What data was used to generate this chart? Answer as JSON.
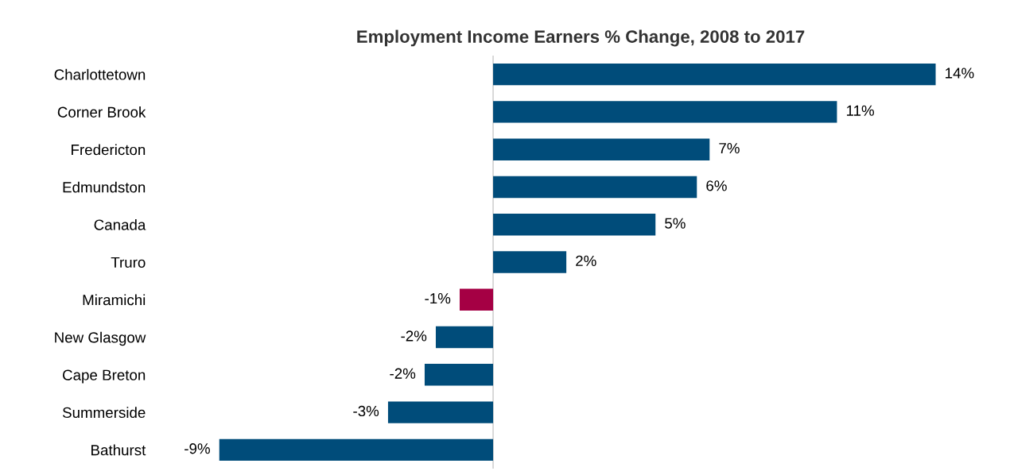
{
  "chart_data": {
    "type": "bar",
    "orientation": "horizontal",
    "title": "Employment Income Earners % Change, 2008 to 2017",
    "categories": [
      "Charlottetown",
      "Corner Brook",
      "Fredericton",
      "Edmundston",
      "Canada",
      "Truro",
      "Miramichi",
      "New Glasgow",
      "Cape Breton",
      "Summerside",
      "Bathurst"
    ],
    "values": [
      13.9,
      10.8,
      6.8,
      6.4,
      5.1,
      2.3,
      -1.05,
      -1.8,
      -2.15,
      -3.3,
      -8.6
    ],
    "colors": [
      "#004c7a",
      "#004c7a",
      "#004c7a",
      "#004c7a",
      "#004c7a",
      "#004c7a",
      "#a50044",
      "#004c7a",
      "#004c7a",
      "#004c7a",
      "#004c7a"
    ],
    "value_labels": [
      "14%",
      "11%",
      "7%",
      "6%",
      "5%",
      "2%",
      "-1%",
      "-2%",
      "-2%",
      "-3%",
      "-9%"
    ],
    "grid": false,
    "legend": false
  }
}
